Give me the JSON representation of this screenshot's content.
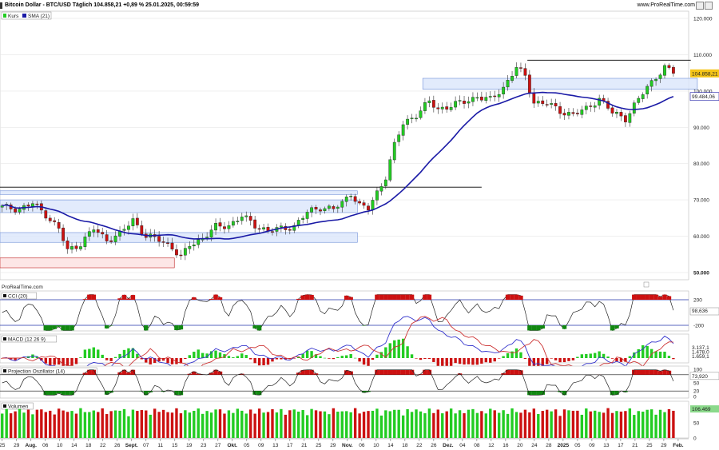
{
  "header": {
    "title": "Bitcoin Dollar - BTC/USD Täglich 104.858,21 +0,89 % 25.01.2025, 00:59:59",
    "site": "www.ProRealTime.com"
  },
  "colors": {
    "up": "#22cc22",
    "down": "#cc1111",
    "sma": "#1a1aa6",
    "zone_blue": "#dbe6fb",
    "zone_blue_border": "#6f8fd8",
    "zone_red": "#fde0e0",
    "zone_red_border": "#c02020",
    "price_badge": "#f5c518"
  },
  "price_panel": {
    "legend": [
      {
        "label": "Kurs",
        "icon": "candle-icon"
      },
      {
        "label": "SMA (21)",
        "icon": "line-icon"
      }
    ],
    "current_price_label": "104.858,21",
    "sma_label": "99.484,06",
    "watermark": "ProRealTime.com",
    "y_ticks": [
      "120.000",
      "110.000",
      "100.000",
      "90.000",
      "80.000",
      "70.000",
      "60.000",
      "50.000"
    ]
  },
  "cci_panel": {
    "legend": "CCI (20)",
    "y_ticks": [
      "200",
      "0",
      "-200"
    ],
    "current_label": "98,636"
  },
  "macd_panel": {
    "legend": "MACD (12 26 9)",
    "labels": [
      "3.137,1",
      "1.478,0",
      "1.659,1"
    ]
  },
  "po_panel": {
    "legend": "Projection Oszillator (14)",
    "y_ticks": [
      "100",
      "80",
      "50",
      "20",
      "0"
    ],
    "current_label": "73,920"
  },
  "volume_panel": {
    "legend": "Volumen",
    "y_ticks": [
      "100",
      "50",
      "0"
    ],
    "current_label": "106.469"
  },
  "x_axis": [
    {
      "label": "25",
      "bold": false
    },
    {
      "label": "29",
      "bold": false
    },
    {
      "label": "Aug.",
      "bold": true
    },
    {
      "label": "06",
      "bold": false
    },
    {
      "label": "10",
      "bold": false
    },
    {
      "label": "14",
      "bold": false
    },
    {
      "label": "18",
      "bold": false
    },
    {
      "label": "22",
      "bold": false
    },
    {
      "label": "26",
      "bold": false
    },
    {
      "label": "Sept.",
      "bold": true
    },
    {
      "label": "07",
      "bold": false
    },
    {
      "label": "11",
      "bold": false
    },
    {
      "label": "15",
      "bold": false
    },
    {
      "label": "19",
      "bold": false
    },
    {
      "label": "23",
      "bold": false
    },
    {
      "label": "27",
      "bold": false
    },
    {
      "label": "Okt.",
      "bold": true
    },
    {
      "label": "05",
      "bold": false
    },
    {
      "label": "09",
      "bold": false
    },
    {
      "label": "13",
      "bold": false
    },
    {
      "label": "17",
      "bold": false
    },
    {
      "label": "21",
      "bold": false
    },
    {
      "label": "25",
      "bold": false
    },
    {
      "label": "29",
      "bold": false
    },
    {
      "label": "Nov.",
      "bold": true
    },
    {
      "label": "06",
      "bold": false
    },
    {
      "label": "10",
      "bold": false
    },
    {
      "label": "14",
      "bold": false
    },
    {
      "label": "18",
      "bold": false
    },
    {
      "label": "22",
      "bold": false
    },
    {
      "label": "26",
      "bold": false
    },
    {
      "label": "Dez.",
      "bold": true
    },
    {
      "label": "04",
      "bold": false
    },
    {
      "label": "08",
      "bold": false
    },
    {
      "label": "12",
      "bold": false
    },
    {
      "label": "16",
      "bold": false
    },
    {
      "label": "20",
      "bold": false
    },
    {
      "label": "24",
      "bold": false
    },
    {
      "label": "28",
      "bold": false
    },
    {
      "label": "2025",
      "bold": true
    },
    {
      "label": "05",
      "bold": false
    },
    {
      "label": "09",
      "bold": false
    },
    {
      "label": "13",
      "bold": false
    },
    {
      "label": "17",
      "bold": false
    },
    {
      "label": "21",
      "bold": false
    },
    {
      "label": "25",
      "bold": false
    },
    {
      "label": "29",
      "bold": false
    },
    {
      "label": "Feb.",
      "bold": true
    }
  ],
  "chart_data": {
    "type": "candlestick",
    "ylim": [
      48000,
      122000
    ],
    "sma_period": 21,
    "anchors": [
      [
        0,
        68000
      ],
      [
        4,
        67500
      ],
      [
        7,
        69000
      ],
      [
        10,
        66000
      ],
      [
        13,
        62000
      ],
      [
        15,
        56000
      ],
      [
        18,
        58000
      ],
      [
        21,
        62000
      ],
      [
        24,
        59000
      ],
      [
        27,
        60500
      ],
      [
        30,
        64500
      ],
      [
        33,
        60000
      ],
      [
        36,
        59000
      ],
      [
        39,
        57000
      ],
      [
        41,
        54000
      ],
      [
        43,
        57500
      ],
      [
        46,
        59500
      ],
      [
        49,
        62500
      ],
      [
        52,
        63000
      ],
      [
        55,
        65500
      ],
      [
        58,
        63000
      ],
      [
        61,
        61500
      ],
      [
        64,
        62000
      ],
      [
        67,
        62800
      ],
      [
        70,
        66500
      ],
      [
        73,
        68000
      ],
      [
        76,
        67500
      ],
      [
        78,
        69000
      ],
      [
        80,
        72000
      ],
      [
        82,
        68500
      ],
      [
        84,
        67500
      ],
      [
        86,
        72000
      ],
      [
        88,
        76500
      ],
      [
        90,
        85000
      ],
      [
        92,
        91000
      ],
      [
        95,
        93500
      ],
      [
        98,
        97000
      ],
      [
        100,
        95000
      ],
      [
        103,
        96000
      ],
      [
        106,
        97000
      ],
      [
        109,
        98500
      ],
      [
        112,
        97500
      ],
      [
        115,
        101000
      ],
      [
        118,
        106500
      ],
      [
        120,
        104000
      ],
      [
        122,
        97000
      ],
      [
        125,
        96500
      ],
      [
        128,
        94500
      ],
      [
        131,
        93500
      ],
      [
        134,
        95000
      ],
      [
        137,
        98000
      ],
      [
        140,
        94000
      ],
      [
        143,
        92500
      ],
      [
        145,
        96000
      ],
      [
        148,
        101000
      ],
      [
        150,
        104000
      ],
      [
        152,
        106500
      ],
      [
        154,
        104858.21
      ]
    ],
    "zones": [
      {
        "color": "red",
        "x0": 0,
        "x1": 40,
        "y0": 51300,
        "y1": 54000
      },
      {
        "color": "blue",
        "x0": 0,
        "x1": 82,
        "y0": 71500,
        "y1": 72500
      },
      {
        "color": "blue",
        "x0": 0,
        "x1": 82,
        "y0": 66500,
        "y1": 70000
      },
      {
        "color": "blue",
        "x0": 0,
        "x1": 82,
        "y0": 58300,
        "y1": 61000
      },
      {
        "color": "blue",
        "x0": 97,
        "x1": 160,
        "y0": 100500,
        "y1": 103500
      }
    ],
    "lines": [
      {
        "x0": 0,
        "x1": 110,
        "y": 73500
      },
      {
        "x0": 121,
        "x1": 158,
        "y": 108500
      }
    ]
  }
}
